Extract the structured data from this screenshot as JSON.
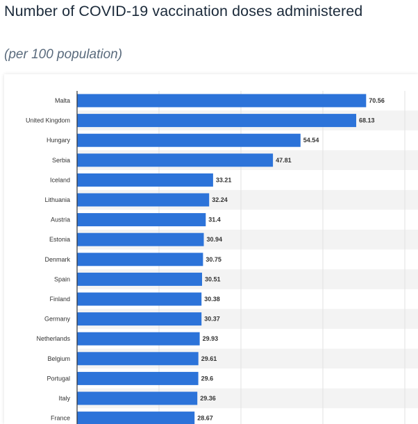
{
  "title": "Number of COVID-19 vaccination doses administered",
  "subtitle": "(per 100 population)",
  "colors": {
    "bar": "#2c73d9",
    "band": "#f3f3f3",
    "grid": "#e2e2e2",
    "axis": "#333333"
  },
  "chart_data": {
    "type": "bar",
    "orientation": "horizontal",
    "categories": [
      "Malta",
      "United Kingdom",
      "Hungary",
      "Serbia",
      "Iceland",
      "Lithuania",
      "Austria",
      "Estonia",
      "Denmark",
      "Spain",
      "Finland",
      "Germany",
      "Netherlands",
      "Belgium",
      "Portugal",
      "Italy",
      "France"
    ],
    "values": [
      70.56,
      68.13,
      54.54,
      47.81,
      33.21,
      32.24,
      31.4,
      30.94,
      30.75,
      30.51,
      30.38,
      30.37,
      29.93,
      29.61,
      29.6,
      29.36,
      28.67
    ],
    "value_labels": [
      "70.56",
      "68.13",
      "54.54",
      "47.81",
      "33.21",
      "32.24",
      "31.4",
      "30.94",
      "30.75",
      "30.51",
      "30.38",
      "30.37",
      "29.93",
      "29.61",
      "29.6",
      "29.36",
      "28.67"
    ],
    "xlim": [
      0,
      80
    ],
    "grid": true,
    "legend": "none"
  }
}
